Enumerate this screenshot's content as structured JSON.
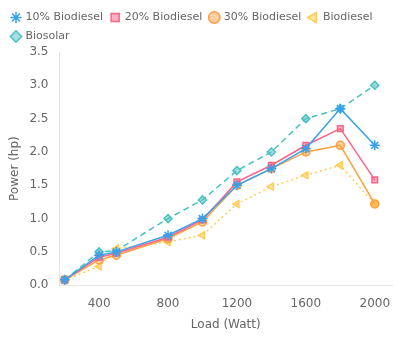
{
  "chart_data": {
    "type": "line",
    "x": [
      200,
      400,
      500,
      800,
      1000,
      1200,
      1400,
      1600,
      1800,
      2000
    ],
    "series": [
      {
        "name": "10% Biodiesel",
        "values": [
          0.08,
          0.45,
          0.5,
          0.75,
          1.0,
          1.5,
          1.75,
          2.05,
          2.65,
          2.1
        ],
        "marker": "star",
        "line_style": "solid"
      },
      {
        "name": "20% Biodiesel",
        "values": [
          0.08,
          0.42,
          0.48,
          0.72,
          0.98,
          1.55,
          1.8,
          2.1,
          2.35,
          1.58
        ],
        "marker": "square",
        "line_style": "solid"
      },
      {
        "name": "30% Biodiesel",
        "values": [
          0.08,
          0.38,
          0.45,
          0.7,
          0.95,
          1.5,
          1.75,
          2.0,
          2.1,
          1.22
        ],
        "marker": "circle",
        "line_style": "solid"
      },
      {
        "name": "Biodiesel",
        "values": [
          0.08,
          0.28,
          0.55,
          0.65,
          0.75,
          1.22,
          1.48,
          1.65,
          1.8,
          1.22
        ],
        "marker": "triangle-left",
        "line_style": "dotted"
      },
      {
        "name": "Biosolar",
        "values": [
          0.08,
          0.5,
          0.52,
          1.0,
          1.28,
          1.72,
          2.0,
          2.5,
          2.65,
          3.0
        ],
        "marker": "diamond",
        "line_style": "dashed"
      }
    ],
    "xlabel": "Load (Watt)",
    "ylabel": "Power (hp)",
    "xlim": [
      170,
      2100
    ],
    "ylim": [
      0.0,
      3.5
    ],
    "xticks": [
      400,
      800,
      1200,
      1600,
      2000
    ],
    "yticks": [
      {
        "value": 0.0,
        "label": "0.0"
      },
      0.5,
      {
        "value": 1.0,
        "label": "1.0"
      },
      1.5,
      {
        "value": 2.0,
        "label": "2.0"
      },
      2.5,
      {
        "value": 3.0,
        "label": "3.0"
      },
      3.5
    ],
    "grid": false,
    "legend": "upper left"
  }
}
